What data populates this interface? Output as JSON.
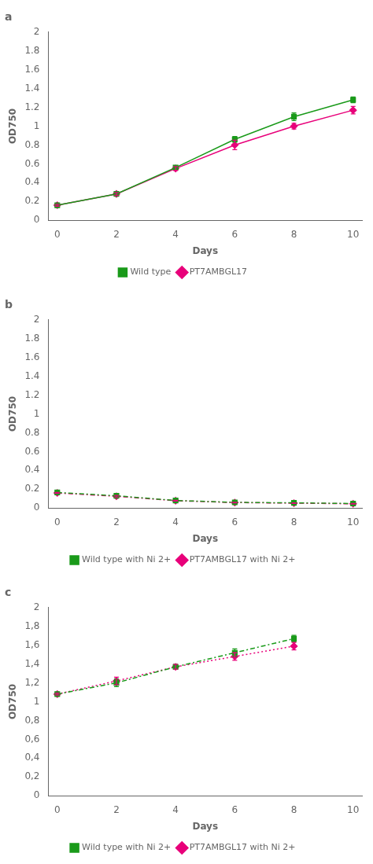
{
  "chart_data": [
    {
      "type": "line",
      "title": "a",
      "xlabel": "Days",
      "ylabel": "OD750",
      "x": [
        0,
        2,
        4,
        6,
        8,
        10
      ],
      "series": [
        {
          "name": "Wild type",
          "color": "#1a9a1a",
          "marker": "square",
          "line_style": "solid",
          "values": [
            0.16,
            0.28,
            0.56,
            0.86,
            1.1,
            1.28
          ],
          "errors": [
            0.01,
            0.015,
            0.02,
            0.03,
            0.04,
            0.03
          ]
        },
        {
          "name": "PT7AMBGL17",
          "color": "#e8007a",
          "marker": "diamond",
          "line_style": "solid",
          "values": [
            0.16,
            0.28,
            0.55,
            0.8,
            1.0,
            1.17
          ],
          "errors": [
            0.01,
            0.015,
            0.02,
            0.05,
            0.03,
            0.04
          ]
        }
      ],
      "xlim": [
        -0.3,
        10.3
      ],
      "xticks": [
        0,
        2,
        4,
        6,
        8,
        10
      ],
      "ylim": [
        0,
        2
      ],
      "yticks": [
        0,
        0.2,
        0.4,
        0.6,
        0.8,
        1,
        1.2,
        1.4,
        1.6,
        1.8,
        2
      ],
      "grid": false,
      "legend": "bottom"
    },
    {
      "type": "line",
      "title": "b",
      "xlabel": "Days",
      "ylabel": "OD750",
      "x": [
        0,
        2,
        4,
        6,
        8,
        10
      ],
      "series": [
        {
          "name": "Wild type with Ni 2+",
          "color": "#1a9a1a",
          "marker": "square",
          "line_style": "dashdot",
          "values": [
            0.165,
            0.13,
            0.08,
            0.06,
            0.055,
            0.048
          ],
          "errors": [
            0.005,
            0.012,
            0.005,
            0.004,
            0.003,
            0.003
          ]
        },
        {
          "name": "PT7AMBGL17 with Ni 2+",
          "color": "#e8007a",
          "marker": "diamond",
          "line_style": "dashdot",
          "values": [
            0.16,
            0.125,
            0.078,
            0.058,
            0.052,
            0.045
          ],
          "errors": [
            0.005,
            0.01,
            0.004,
            0.003,
            0.003,
            0.003
          ]
        }
      ],
      "xlim": [
        -0.3,
        10.3
      ],
      "xticks": [
        0,
        2,
        4,
        6,
        8,
        10
      ],
      "ylim": [
        0,
        2
      ],
      "yticks": [
        0,
        0.2,
        0.4,
        0.6,
        0.8,
        1,
        1.2,
        1.4,
        1.6,
        1.8,
        2
      ],
      "grid": false,
      "legend": "bottom"
    },
    {
      "type": "line",
      "title": "c",
      "xlabel": "Days",
      "ylabel": "OD750",
      "x": [
        0,
        2,
        4,
        6,
        8
      ],
      "series": [
        {
          "name": "Wild type with Ni 2+",
          "color": "#1a9a1a",
          "marker": "square",
          "line_style": "dashdot",
          "values": [
            1.08,
            1.2,
            1.37,
            1.52,
            1.67
          ],
          "errors": [
            0.01,
            0.04,
            0.025,
            0.04,
            0.035
          ]
        },
        {
          "name": "PT7AMBGL17 with Ni 2+",
          "color": "#e8007a",
          "marker": "diamond",
          "line_style": "dotted",
          "values": [
            1.08,
            1.22,
            1.37,
            1.48,
            1.59
          ],
          "errors": [
            0.01,
            0.04,
            0.025,
            0.04,
            0.04
          ]
        }
      ],
      "xlim": [
        -0.3,
        10.3
      ],
      "xticks": [
        0,
        2,
        4,
        6,
        8,
        10
      ],
      "ylim": [
        0,
        2
      ],
      "yticks": [
        0,
        {
          "value": 0.2,
          "label": "0,2"
        },
        {
          "value": 0.4,
          "label": "0,4"
        },
        {
          "value": 0.6,
          "label": "0,6"
        },
        {
          "value": 0.8,
          "label": "0,8"
        },
        1,
        {
          "value": 1.2,
          "label": "1,2"
        },
        {
          "value": 1.4,
          "label": "1,4"
        },
        {
          "value": 1.6,
          "label": "1,6"
        },
        {
          "value": 1.8,
          "label": "1,8"
        },
        2
      ],
      "grid": false,
      "legend": "bottom"
    }
  ]
}
